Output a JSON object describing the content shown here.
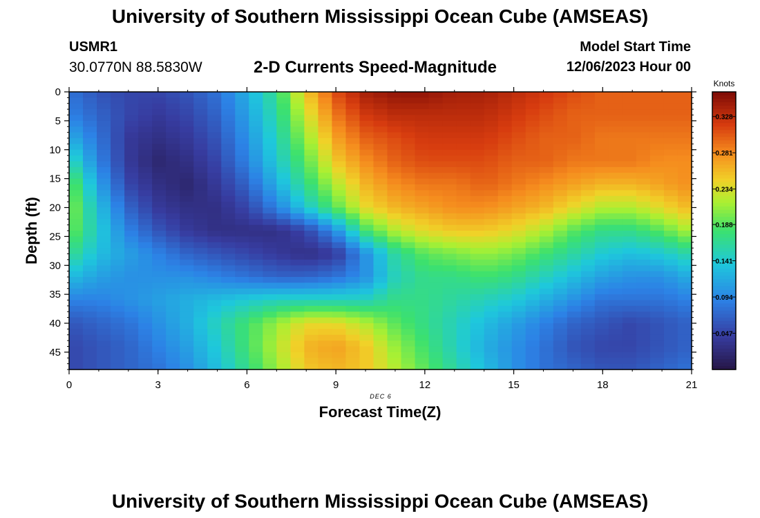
{
  "header": {
    "title": "University of Southern Mississippi Ocean Cube (AMSEAS)",
    "station_id": "USMR1",
    "coordinates": "30.0770N  88.5830W",
    "plot_title": "2-D Currents Speed-Magnitude",
    "model_start_label": "Model Start Time",
    "model_start_value": "12/06/2023 Hour 00"
  },
  "footer": {
    "title": "University of Southern Mississippi Ocean Cube (AMSEAS)"
  },
  "chart_data": {
    "type": "heatmap",
    "title": "2-D Currents Speed-Magnitude",
    "xlabel": "Forecast Time(Z)",
    "ylabel": "Depth (ft)",
    "date_annotation": "DEC 6",
    "x_ticks": [
      "0",
      "3",
      "6",
      "9",
      "12",
      "15",
      "18",
      "21"
    ],
    "y_ticks": [
      "0",
      "5",
      "10",
      "15",
      "20",
      "25",
      "30",
      "35",
      "40",
      "45"
    ],
    "xlim": [
      0,
      21
    ],
    "ylim": [
      0,
      48
    ],
    "colorbar": {
      "unit": "Knots",
      "min": 0.0,
      "max": 0.36,
      "tick_values": [
        0.047,
        0.094,
        0.141,
        0.188,
        0.234,
        0.281,
        0.328
      ],
      "tick_labels": [
        "0.047",
        "0.094",
        "0.141",
        "0.188",
        "0.234",
        "0.281",
        "0.328"
      ]
    },
    "depths_ft": [
      0,
      4,
      8,
      12,
      16,
      20,
      24,
      28,
      32,
      36,
      40,
      44,
      48
    ],
    "hours": [
      0,
      1,
      2,
      3,
      4,
      5,
      6,
      7,
      8,
      9,
      10,
      11,
      12,
      13,
      14,
      15,
      16,
      17,
      18,
      19,
      20,
      21
    ],
    "speed_knots": [
      [
        0.08,
        0.06,
        0.05,
        0.05,
        0.06,
        0.08,
        0.12,
        0.17,
        0.25,
        0.31,
        0.34,
        0.35,
        0.35,
        0.34,
        0.34,
        0.33,
        0.32,
        0.31,
        0.3,
        0.3,
        0.3,
        0.3
      ],
      [
        0.09,
        0.07,
        0.05,
        0.04,
        0.05,
        0.07,
        0.11,
        0.16,
        0.23,
        0.29,
        0.32,
        0.33,
        0.33,
        0.33,
        0.33,
        0.32,
        0.31,
        0.3,
        0.3,
        0.3,
        0.3,
        0.3
      ],
      [
        0.12,
        0.08,
        0.04,
        0.03,
        0.04,
        0.06,
        0.1,
        0.15,
        0.21,
        0.27,
        0.3,
        0.31,
        0.32,
        0.32,
        0.32,
        0.31,
        0.3,
        0.3,
        0.29,
        0.29,
        0.29,
        0.29
      ],
      [
        0.16,
        0.09,
        0.04,
        0.02,
        0.03,
        0.05,
        0.09,
        0.14,
        0.19,
        0.25,
        0.28,
        0.3,
        0.31,
        0.31,
        0.31,
        0.3,
        0.3,
        0.29,
        0.29,
        0.29,
        0.28,
        0.28
      ],
      [
        0.2,
        0.11,
        0.05,
        0.03,
        0.02,
        0.04,
        0.07,
        0.12,
        0.17,
        0.22,
        0.26,
        0.28,
        0.29,
        0.29,
        0.3,
        0.29,
        0.28,
        0.27,
        0.26,
        0.26,
        0.27,
        0.28
      ],
      [
        0.21,
        0.13,
        0.07,
        0.04,
        0.03,
        0.03,
        0.05,
        0.09,
        0.14,
        0.19,
        0.24,
        0.26,
        0.27,
        0.28,
        0.28,
        0.27,
        0.26,
        0.24,
        0.22,
        0.22,
        0.24,
        0.26
      ],
      [
        0.2,
        0.14,
        0.09,
        0.06,
        0.04,
        0.03,
        0.03,
        0.03,
        0.05,
        0.1,
        0.18,
        0.22,
        0.24,
        0.25,
        0.25,
        0.24,
        0.22,
        0.19,
        0.17,
        0.17,
        0.19,
        0.22
      ],
      [
        0.17,
        0.13,
        0.11,
        0.09,
        0.07,
        0.06,
        0.05,
        0.04,
        0.03,
        0.04,
        0.1,
        0.16,
        0.19,
        0.2,
        0.21,
        0.2,
        0.18,
        0.16,
        0.14,
        0.13,
        0.14,
        0.16
      ],
      [
        0.13,
        0.11,
        0.1,
        0.1,
        0.1,
        0.09,
        0.08,
        0.07,
        0.07,
        0.08,
        0.1,
        0.15,
        0.17,
        0.17,
        0.18,
        0.17,
        0.15,
        0.13,
        0.11,
        0.1,
        0.1,
        0.12
      ],
      [
        0.09,
        0.09,
        0.1,
        0.11,
        0.12,
        0.13,
        0.14,
        0.15,
        0.15,
        0.15,
        0.15,
        0.17,
        0.17,
        0.16,
        0.15,
        0.14,
        0.12,
        0.1,
        0.08,
        0.08,
        0.08,
        0.09
      ],
      [
        0.06,
        0.07,
        0.08,
        0.1,
        0.12,
        0.15,
        0.18,
        0.21,
        0.24,
        0.24,
        0.22,
        0.19,
        0.17,
        0.15,
        0.13,
        0.11,
        0.09,
        0.07,
        0.06,
        0.05,
        0.06,
        0.07
      ],
      [
        0.05,
        0.06,
        0.07,
        0.09,
        0.11,
        0.14,
        0.18,
        0.22,
        0.26,
        0.27,
        0.25,
        0.21,
        0.18,
        0.15,
        0.12,
        0.1,
        0.08,
        0.06,
        0.05,
        0.05,
        0.06,
        0.07
      ],
      [
        0.05,
        0.06,
        0.07,
        0.08,
        0.1,
        0.13,
        0.17,
        0.21,
        0.25,
        0.26,
        0.25,
        0.22,
        0.19,
        0.16,
        0.13,
        0.1,
        0.08,
        0.07,
        0.06,
        0.06,
        0.07,
        0.08
      ]
    ]
  }
}
